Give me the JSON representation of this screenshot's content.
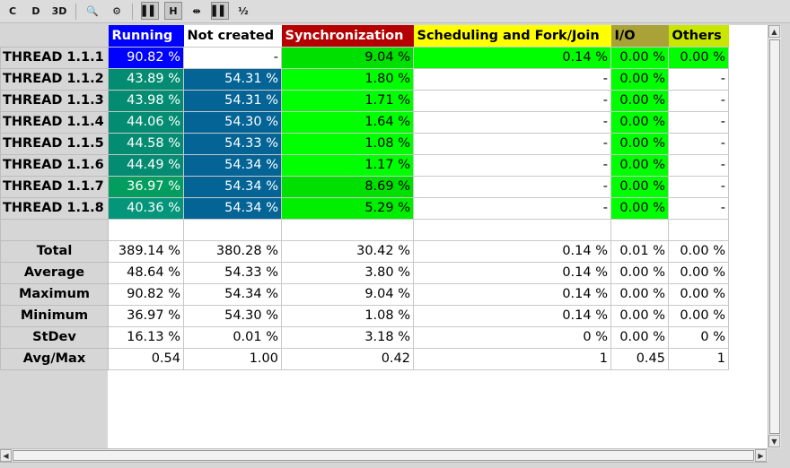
{
  "toolbar": {
    "buttons": [
      {
        "name": "code-color-icon",
        "glyph": "C",
        "pressed": false
      },
      {
        "name": "display-icon",
        "glyph": "D",
        "pressed": false
      },
      {
        "name": "3d-icon",
        "glyph": "3D",
        "pressed": false
      },
      {
        "name": "zoom-icon",
        "glyph": "🔍",
        "pressed": false
      },
      {
        "name": "filter-icon",
        "glyph": "⚙",
        "pressed": false
      },
      {
        "name": "gradient-color-icon",
        "glyph": "▌▌",
        "pressed": true
      },
      {
        "name": "hide-empty-icon",
        "glyph": "H",
        "pressed": true
      },
      {
        "name": "expand-columns-icon",
        "glyph": "⇹",
        "pressed": false
      },
      {
        "name": "paint-columns-icon",
        "glyph": "▌▌",
        "pressed": true
      },
      {
        "name": "fraction-icon",
        "glyph": "½",
        "pressed": false
      }
    ]
  },
  "columns": [
    {
      "label": "Running",
      "bg": "#0000ff",
      "fg": "#ffffff"
    },
    {
      "label": "Not created",
      "bg": "#ffffff",
      "fg": "#000000"
    },
    {
      "label": "Synchronization",
      "bg": "#b50000",
      "fg": "#ffffff"
    },
    {
      "label": "Scheduling and Fork/Join",
      "bg": "#ffff00",
      "fg": "#000000"
    },
    {
      "label": "I/O",
      "bg": "#a9a237",
      "fg": "#000000"
    },
    {
      "label": "Others",
      "bg": "#c8e600",
      "fg": "#000000"
    }
  ],
  "rows": [
    {
      "label": "THREAD 1.1.1",
      "cells": [
        {
          "v": "90.82 %",
          "bg": "#0000ff",
          "lt": true
        },
        {
          "v": "-",
          "bg": "#ffffff",
          "lt": false
        },
        {
          "v": "9.04 %",
          "bg": "#00e000",
          "lt": false
        },
        {
          "v": "0.14 %",
          "bg": "#00ff00",
          "lt": false
        },
        {
          "v": "0.00 %",
          "bg": "#00ff00",
          "lt": false
        },
        {
          "v": "0.00 %",
          "bg": "#00ff00",
          "lt": false
        }
      ]
    },
    {
      "label": "THREAD 1.1.2",
      "cells": [
        {
          "v": "43.89 %",
          "bg": "#048c73",
          "lt": true
        },
        {
          "v": "54.31 %",
          "bg": "#046496",
          "lt": true
        },
        {
          "v": "1.80 %",
          "bg": "#00ff00",
          "lt": false
        },
        {
          "v": "-",
          "bg": "#ffffff",
          "lt": false
        },
        {
          "v": "0.00 %",
          "bg": "#00ff00",
          "lt": false
        },
        {
          "v": "-",
          "bg": "#ffffff",
          "lt": false
        }
      ]
    },
    {
      "label": "THREAD 1.1.3",
      "cells": [
        {
          "v": "43.98 %",
          "bg": "#048c73",
          "lt": true
        },
        {
          "v": "54.31 %",
          "bg": "#046496",
          "lt": true
        },
        {
          "v": "1.71 %",
          "bg": "#00ff00",
          "lt": false
        },
        {
          "v": "-",
          "bg": "#ffffff",
          "lt": false
        },
        {
          "v": "0.00 %",
          "bg": "#00ff00",
          "lt": false
        },
        {
          "v": "-",
          "bg": "#ffffff",
          "lt": false
        }
      ]
    },
    {
      "label": "THREAD 1.1.4",
      "cells": [
        {
          "v": "44.06 %",
          "bg": "#048c73",
          "lt": true
        },
        {
          "v": "54.30 %",
          "bg": "#046496",
          "lt": true
        },
        {
          "v": "1.64 %",
          "bg": "#00ff00",
          "lt": false
        },
        {
          "v": "-",
          "bg": "#ffffff",
          "lt": false
        },
        {
          "v": "0.00 %",
          "bg": "#00ff00",
          "lt": false
        },
        {
          "v": "-",
          "bg": "#ffffff",
          "lt": false
        }
      ]
    },
    {
      "label": "THREAD 1.1.5",
      "cells": [
        {
          "v": "44.58 %",
          "bg": "#048c73",
          "lt": true
        },
        {
          "v": "54.33 %",
          "bg": "#046496",
          "lt": true
        },
        {
          "v": "1.08 %",
          "bg": "#00ff00",
          "lt": false
        },
        {
          "v": "-",
          "bg": "#ffffff",
          "lt": false
        },
        {
          "v": "0.00 %",
          "bg": "#00ff00",
          "lt": false
        },
        {
          "v": "-",
          "bg": "#ffffff",
          "lt": false
        }
      ]
    },
    {
      "label": "THREAD 1.1.6",
      "cells": [
        {
          "v": "44.49 %",
          "bg": "#048c73",
          "lt": true
        },
        {
          "v": "54.34 %",
          "bg": "#046496",
          "lt": true
        },
        {
          "v": "1.17 %",
          "bg": "#00ff00",
          "lt": false
        },
        {
          "v": "-",
          "bg": "#ffffff",
          "lt": false
        },
        {
          "v": "0.00 %",
          "bg": "#00ff00",
          "lt": false
        },
        {
          "v": "-",
          "bg": "#ffffff",
          "lt": false
        }
      ]
    },
    {
      "label": "THREAD 1.1.7",
      "cells": [
        {
          "v": "36.97 %",
          "bg": "#039e5f",
          "lt": true
        },
        {
          "v": "54.34 %",
          "bg": "#046496",
          "lt": true
        },
        {
          "v": "8.69 %",
          "bg": "#00e000",
          "lt": false
        },
        {
          "v": "-",
          "bg": "#ffffff",
          "lt": false
        },
        {
          "v": "0.00 %",
          "bg": "#00ff00",
          "lt": false
        },
        {
          "v": "-",
          "bg": "#ffffff",
          "lt": false
        }
      ]
    },
    {
      "label": "THREAD 1.1.8",
      "cells": [
        {
          "v": "40.36 %",
          "bg": "#04967a",
          "lt": true
        },
        {
          "v": "54.34 %",
          "bg": "#046496",
          "lt": true
        },
        {
          "v": "5.29 %",
          "bg": "#00ef00",
          "lt": false
        },
        {
          "v": "-",
          "bg": "#ffffff",
          "lt": false
        },
        {
          "v": "0.00 %",
          "bg": "#00ff00",
          "lt": false
        },
        {
          "v": "-",
          "bg": "#ffffff",
          "lt": false
        }
      ]
    }
  ],
  "stats": [
    {
      "label": "Total",
      "cells": [
        "389.14 %",
        "380.28 %",
        "30.42 %",
        "0.14 %",
        "0.01 %",
        "0.00 %"
      ]
    },
    {
      "label": "Average",
      "cells": [
        "48.64 %",
        "54.33 %",
        "3.80 %",
        "0.14 %",
        "0.00 %",
        "0.00 %"
      ]
    },
    {
      "label": "Maximum",
      "cells": [
        "90.82 %",
        "54.34 %",
        "9.04 %",
        "0.14 %",
        "0.00 %",
        "0.00 %"
      ]
    },
    {
      "label": "Minimum",
      "cells": [
        "36.97 %",
        "54.30 %",
        "1.08 %",
        "0.14 %",
        "0.00 %",
        "0.00 %"
      ]
    },
    {
      "label": "StDev",
      "cells": [
        "16.13 %",
        "0.01 %",
        "3.18 %",
        "0 %",
        "0.00 %",
        "0 %"
      ]
    },
    {
      "label": "Avg/Max",
      "cells": [
        "0.54",
        "1.00",
        "0.42",
        "1",
        "0.45",
        "1"
      ]
    }
  ]
}
